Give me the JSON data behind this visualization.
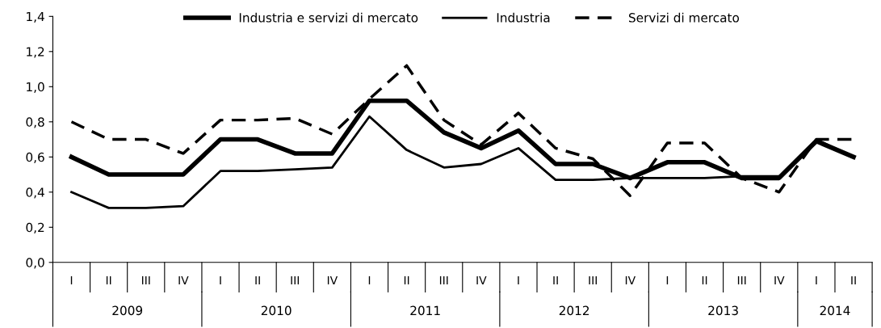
{
  "chart_data": {
    "type": "line",
    "categories": [
      "I",
      "II",
      "III",
      "IV",
      "I",
      "II",
      "III",
      "IV",
      "I",
      "II",
      "III",
      "IV",
      "I",
      "II",
      "III",
      "IV",
      "I",
      "II",
      "III",
      "IV",
      "I",
      "II"
    ],
    "series": [
      {
        "name": "Industria e servizi di mercato",
        "color": "#000000",
        "line_style": "solid",
        "values": [
          0.6,
          0.5,
          0.5,
          0.5,
          0.7,
          0.7,
          0.62,
          0.62,
          0.92,
          0.92,
          0.74,
          0.65,
          0.75,
          0.56,
          0.56,
          0.48,
          0.57,
          0.57,
          0.48,
          0.48,
          0.69,
          0.6
        ]
      },
      {
        "name": "Industria",
        "color": "#000000",
        "line_style": "solid",
        "values": [
          0.4,
          0.31,
          0.31,
          0.32,
          0.52,
          0.52,
          0.53,
          0.54,
          0.83,
          0.64,
          0.54,
          0.56,
          0.65,
          0.47,
          0.47,
          0.48,
          0.48,
          0.48,
          0.49,
          0.49,
          0.7,
          0.6
        ]
      },
      {
        "name": "Servizi di mercato",
        "color": "#000000",
        "line_style": "dashed",
        "values": [
          0.8,
          0.7,
          0.7,
          0.62,
          0.81,
          0.81,
          0.82,
          0.73,
          0.93,
          1.12,
          0.81,
          0.67,
          0.85,
          0.65,
          0.59,
          0.38,
          0.68,
          0.68,
          0.48,
          0.4,
          0.7,
          0.7
        ]
      }
    ],
    "annotations": [
      "2009",
      "2010",
      "2011",
      "2012",
      "2013",
      "2014"
    ],
    "ylim": [
      0,
      1.4
    ],
    "yticks": [
      {
        "value": 0,
        "label": "0,0"
      },
      {
        "value": 0.2,
        "label": "0,2"
      },
      {
        "value": 0.4,
        "label": "0,4"
      },
      {
        "value": 0.6,
        "label": "0,6"
      },
      {
        "value": 0.8,
        "label": "0,8"
      },
      {
        "value": 1.0,
        "label": "1,0"
      },
      {
        "value": 1.2,
        "label": "1,2"
      },
      {
        "value": 1.4,
        "label": "1,4"
      }
    ],
    "legend": "top",
    "grid": false,
    "marker": "none"
  }
}
